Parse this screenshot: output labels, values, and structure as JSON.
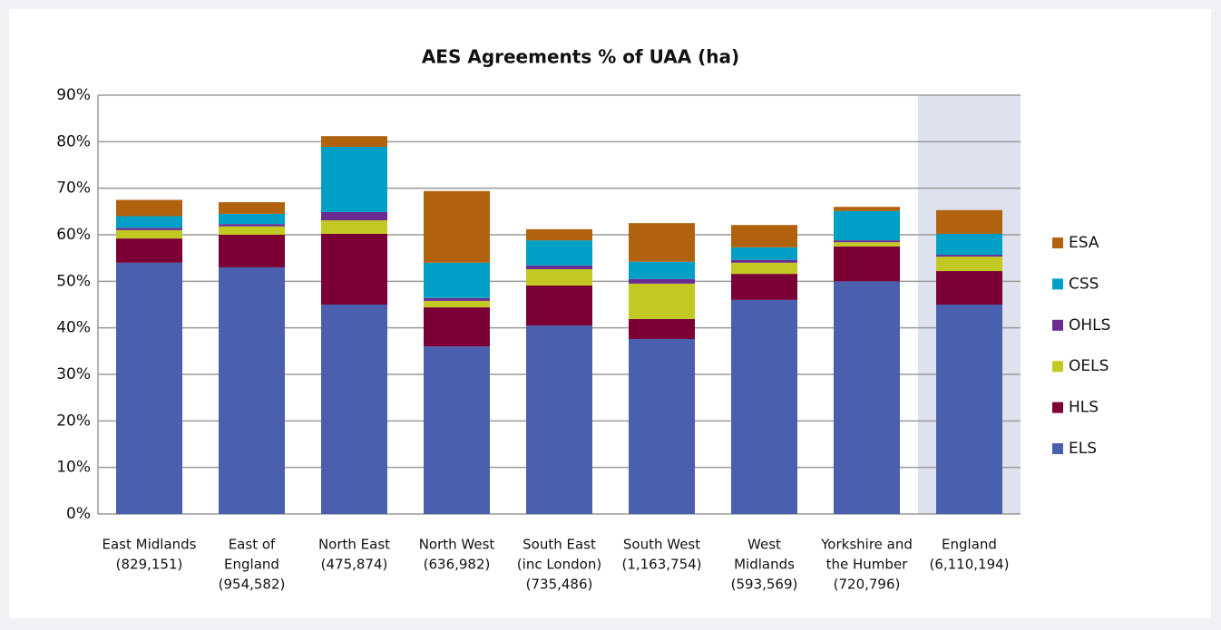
{
  "chart_data": {
    "type": "stacked_bar",
    "title": "AES Agreements % of UAA (ha)",
    "categories": [
      [
        "East Midlands",
        "(829,151)"
      ],
      [
        "East of",
        "England",
        "(954,582)"
      ],
      [
        "North East",
        "(475,874)"
      ],
      [
        "North West",
        "(636,982)"
      ],
      [
        "South East",
        "(inc London)",
        "(735,486)"
      ],
      [
        "South West",
        "(1,163,754)"
      ],
      [
        "West",
        "Midlands",
        "(593,569)"
      ],
      [
        "Yorkshire and",
        "the Humber",
        "(720,796)"
      ],
      [
        "England",
        "(6,110,194)"
      ]
    ],
    "series": [
      {
        "name": "ELS",
        "color": "#4a5fad",
        "values": [
          54,
          53,
          45,
          36,
          40.5,
          37.6,
          46,
          50,
          45
        ]
      },
      {
        "name": "HLS",
        "color": "#7a0036",
        "values": [
          5.2,
          7,
          15.2,
          8.4,
          8.6,
          4.3,
          5.6,
          7.5,
          7.2
        ]
      },
      {
        "name": "OELS",
        "color": "#c2c922",
        "values": [
          1.8,
          1.8,
          2.9,
          1.4,
          3.5,
          7.6,
          2.4,
          0.9,
          3.1
        ]
      },
      {
        "name": "OHLS",
        "color": "#6b2c91",
        "values": [
          0.5,
          0.5,
          1.8,
          0.6,
          0.8,
          1,
          0.6,
          0.4,
          0.4
        ]
      },
      {
        "name": "CSS",
        "color": "#00a0c6",
        "values": [
          2.5,
          2.2,
          14,
          7.6,
          5.4,
          3.7,
          2.7,
          6.3,
          4.5
        ]
      },
      {
        "name": "ESA",
        "color": "#b0620e",
        "values": [
          3.5,
          2.5,
          2.3,
          15.4,
          2.4,
          8.3,
          4.8,
          0.9,
          5.1
        ]
      }
    ],
    "ylim": [
      0,
      90
    ],
    "yticks": [
      {
        "value": 0,
        "label": "0%"
      },
      {
        "value": 10,
        "label": "10%"
      },
      {
        "value": 20,
        "label": "20%"
      },
      {
        "value": 30,
        "label": "30%"
      },
      {
        "value": 40,
        "label": "40%"
      },
      {
        "value": 50,
        "label": "50%"
      },
      {
        "value": 60,
        "label": "60%"
      },
      {
        "value": 70,
        "label": "70%"
      },
      {
        "value": 80,
        "label": "80%"
      },
      {
        "value": 90,
        "label": "90%"
      }
    ],
    "grid": true,
    "legend": "right",
    "highlight_index": 8
  }
}
